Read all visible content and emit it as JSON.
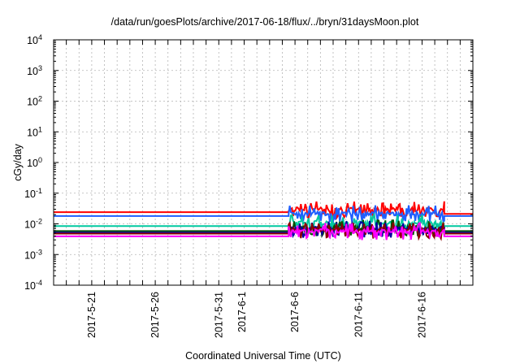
{
  "chart_data": {
    "type": "line",
    "title": "/data/run/goesPlots/archive/2017-06-18/flux/../bryn/31daysMoon.plot",
    "xlabel": "Coordinated Universal Time (UTC)",
    "ylabel": "cGy/day",
    "y_scale": "log",
    "ylim": [
      0.0001,
      10000
    ],
    "xlim": [
      "2017-05-18",
      "2017-06-20"
    ],
    "grid": true,
    "y_ticks": [
      {
        "base": "10",
        "exp": "-4",
        "value": 0.0001
      },
      {
        "base": "10",
        "exp": "-3",
        "value": 0.001
      },
      {
        "base": "10",
        "exp": "-2",
        "value": 0.01
      },
      {
        "base": "10",
        "exp": "-1",
        "value": 0.1
      },
      {
        "base": "10",
        "exp": "0",
        "value": 1
      },
      {
        "base": "10",
        "exp": "1",
        "value": 10
      },
      {
        "base": "10",
        "exp": "2",
        "value": 100
      },
      {
        "base": "10",
        "exp": "3",
        "value": 1000
      },
      {
        "base": "10",
        "exp": "4",
        "value": 10000
      }
    ],
    "x_ticks": [
      {
        "label": "2017-5-21",
        "date": "2017-05-21"
      },
      {
        "label": "2017-5-26",
        "date": "2017-05-26"
      },
      {
        "label": "2017-5-31",
        "date": "2017-05-31"
      },
      {
        "label": "2017-6-1",
        "date": "2017-06-01"
      },
      {
        "label": "2017-6-6",
        "date": "2017-06-06"
      },
      {
        "label": "2017-6-11",
        "date": "2017-06-11"
      },
      {
        "label": "2017-6-16",
        "date": "2017-06-16"
      }
    ],
    "series": [
      {
        "color": "#ff0000",
        "before": 0.024,
        "active": 0.03,
        "after": 0.021
      },
      {
        "color": "#1f5fff",
        "before": 0.018,
        "active": 0.022,
        "after": 0.018
      },
      {
        "color": "#00c8a0",
        "before": 0.0085,
        "active": 0.011,
        "after": 0.0085
      },
      {
        "color": "#005000",
        "before": 0.0058,
        "active": 0.0075,
        "after": 0.0058
      },
      {
        "color": "#0000a0",
        "before": 0.0052,
        "active": 0.007,
        "after": 0.0052
      },
      {
        "color": "#8b0000",
        "before": 0.0048,
        "active": 0.0065,
        "after": 0.0048
      },
      {
        "color": "#ff00ff",
        "before": 0.0039,
        "active": 0.0058,
        "after": 0.0039
      }
    ],
    "active_period": [
      "2017-06-05T12:00",
      "2017-06-17T18:00"
    ]
  }
}
